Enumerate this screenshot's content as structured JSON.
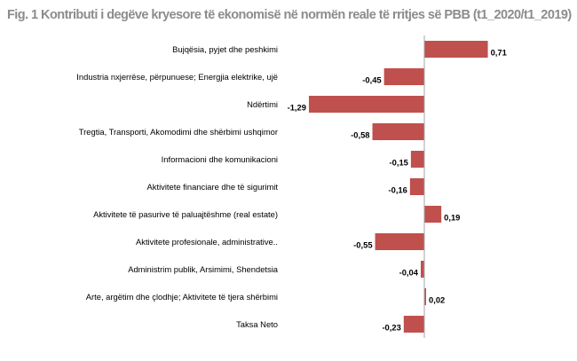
{
  "chart_data": {
    "type": "bar",
    "orientation": "horizontal",
    "title": "Fig. 1 Kontributi i degëve kryesore të ekonomisë në normën reale të rritjes së PBB (t1_2020/t1_2019)",
    "xlabel": "",
    "ylabel": "",
    "grid": false,
    "legend": false,
    "bar_color": "#c0504d",
    "axis_color": "#a6a6a6",
    "categories": [
      "Bujqësia, pyjet dhe peshkimi",
      "Industria nxjerrëse, përpunuese; Energjia elektrike, ujë",
      "Ndërtimi",
      "Tregtia, Transporti, Akomodimi dhe shërbimi ushqimor",
      "Informacioni dhe komunikacioni",
      "Aktivitete financiare dhe të sigurimit",
      "Aktivitete të pasurive të paluajtëshme (real estate)",
      "Aktivitete profesionale, administrative..",
      "Administrim publik, Arsimimi, Shendetsia",
      "Arte, argëtim dhe çlodhje; Aktivitete të tjera shërbimi",
      "Taksa Neto"
    ],
    "values": [
      0.71,
      -0.45,
      -1.29,
      -0.58,
      -0.15,
      -0.16,
      0.19,
      -0.55,
      -0.04,
      0.02,
      -0.23
    ],
    "value_labels": [
      "0,71",
      "-0,45",
      "-1,29",
      "-0,58",
      "-0,15",
      "-0,16",
      "0,19",
      "-0,55",
      "-0,04",
      "0,02",
      "-0,23"
    ]
  }
}
